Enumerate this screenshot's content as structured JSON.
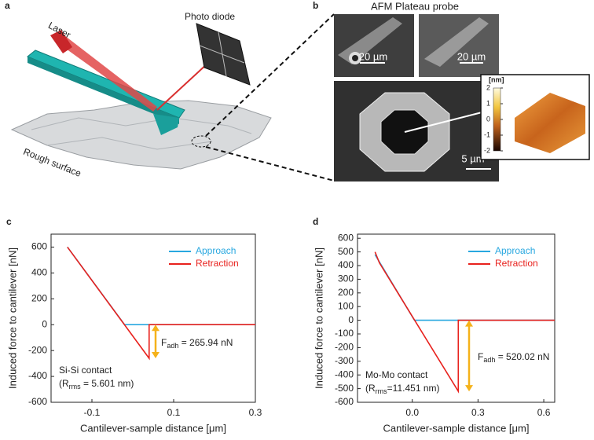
{
  "panel_a": {
    "label": "a",
    "laser": "Laser",
    "photo_diode": "Photo diode",
    "surface": "Rough surface"
  },
  "panel_b": {
    "label": "b",
    "title": "AFM Plateau probe",
    "scale_bars": [
      "20 µm",
      "20 µm",
      "5 µm"
    ],
    "colorbar": {
      "label": "[nm]",
      "ticks": [
        2,
        1,
        0,
        -1,
        -2
      ]
    }
  },
  "chart_data": [
    {
      "type": "line",
      "panel_label": "c",
      "x_label": "Cantilever-sample  distance [μm]",
      "y_label": "Induced force to cantilever  [nN]",
      "xlim": [
        -0.2,
        0.3
      ],
      "xticks": [
        -0.1,
        0.1,
        0.3
      ],
      "ylim": [
        -600,
        700
      ],
      "yticks": [
        -600,
        -400,
        -200,
        0,
        200,
        400,
        600
      ],
      "legend": "upper right",
      "series": [
        {
          "name": "Approach",
          "color": "#29a8e0",
          "x": [
            -0.16,
            -0.02,
            0.3
          ],
          "values": [
            600,
            0,
            0
          ]
        },
        {
          "name": "Retraction",
          "color": "#e8211d",
          "x": [
            -0.16,
            0.04,
            0.04,
            0.3
          ],
          "values": [
            600,
            -260,
            0,
            0
          ]
        }
      ],
      "force_annotation": {
        "symbol": "F",
        "subscript": "adh",
        "text": " = 265.94  nN"
      },
      "contact_annotation": {
        "line1": "Si-Si contact",
        "open": "(R",
        "subscript": "rms",
        "rest": " = 5.601  nm)"
      }
    },
    {
      "type": "line",
      "panel_label": "d",
      "x_label": "Cantilever-sample  distance [μm]",
      "y_label": "Induced force to cantilever  [nN]",
      "xlim": [
        -0.25,
        0.65
      ],
      "xticks": [
        {
          "value": 0,
          "label": "0.0"
        },
        0.3,
        0.6
      ],
      "ylim": [
        -600,
        630
      ],
      "yticks": [
        -600,
        -500,
        -400,
        -300,
        -200,
        -100,
        0,
        100,
        200,
        300,
        400,
        500,
        600
      ],
      "legend": "upper right",
      "series": [
        {
          "name": "Approach",
          "color": "#29a8e0",
          "x": [
            -0.17,
            0.01,
            0.65
          ],
          "values": [
            480,
            0,
            0
          ]
        },
        {
          "name": "Retraction",
          "color": "#e8211d",
          "x": [
            -0.17,
            -0.15,
            0.21,
            0.21,
            0.65
          ],
          "values": [
            500,
            420,
            -520,
            0,
            0
          ]
        }
      ],
      "force_annotation": {
        "symbol": "F",
        "subscript": "adh",
        "text": " = 520.02  nN"
      },
      "contact_annotation": {
        "line1": "Mo-Mo contact",
        "open": "(R",
        "subscript": "rms",
        "rest": "=11.451  nm)"
      }
    }
  ]
}
